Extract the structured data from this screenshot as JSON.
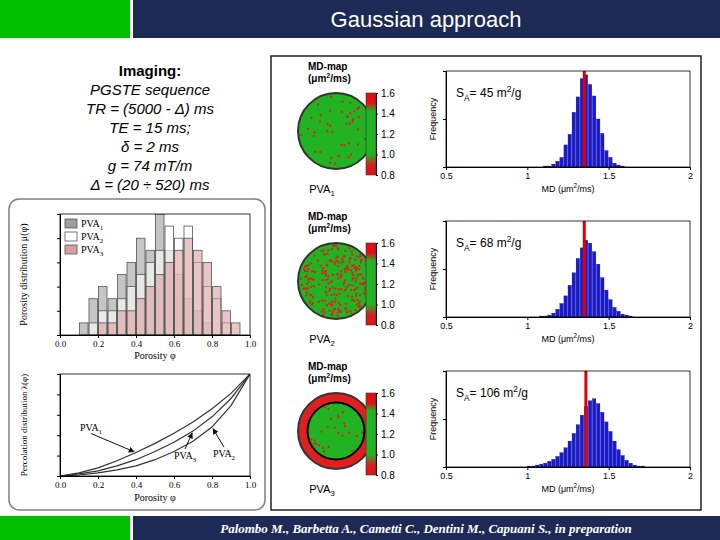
{
  "slide": {
    "title": "Gaussian approach",
    "imaging": {
      "heading": "Imaging:",
      "lines": [
        "PGSTE sequence",
        "TR = (5000 - Δ) ms",
        "TE = 15 ms;",
        "δ = 2 ms",
        "g = 74 mT/m",
        "Δ = (20 ÷ 520) ms"
      ]
    },
    "footer": "Palombo M., Barbetta A., Cametti C., Dentini M., Capuani S., in preparation"
  },
  "chart_data": [
    {
      "type": "histogram",
      "x_label": "Porosity φ",
      "y_label": "Porosity distribution μ(φ)",
      "bins": [
        0.1,
        0.15,
        0.2,
        0.25,
        0.3,
        0.35,
        0.4,
        0.45,
        0.5,
        0.55,
        0.6,
        0.65,
        0.7,
        0.75,
        0.8,
        0.85,
        0.9,
        0.95
      ],
      "series": [
        {
          "name": "PVA1",
          "color": "#9e9e9e",
          "values": [
            1,
            3,
            4,
            3,
            5,
            6,
            8,
            7,
            10,
            7,
            5,
            3,
            2,
            1,
            0,
            0,
            0
          ]
        },
        {
          "name": "PVA2",
          "color": "#ffffff",
          "values": [
            0,
            1,
            2,
            2,
            3,
            4,
            5,
            6,
            7,
            9,
            8,
            9,
            6,
            4,
            3,
            1,
            0
          ]
        },
        {
          "name": "PVA3",
          "color": "#d9a0a0",
          "values": [
            0,
            0,
            1,
            1,
            2,
            2,
            3,
            4,
            5,
            6,
            7,
            8,
            7,
            6,
            4,
            2,
            1
          ]
        }
      ],
      "xlim": [
        0,
        1
      ],
      "xticks": [
        {
          "value": 0,
          "label": "0.0"
        },
        0.2,
        0.4,
        0.6,
        0.8,
        {
          "value": 1,
          "label": "1.0"
        }
      ],
      "ylim": [
        0,
        10
      ],
      "yticks": [
        0,
        2,
        4,
        6,
        8,
        10
      ],
      "tick_labels": "x",
      "legend": "upper left"
    },
    {
      "type": "line",
      "x_label": "Porosity φ",
      "y_label": "Percolation distribution λ(φ)",
      "x": [
        0,
        0.1,
        0.2,
        0.3,
        0.4,
        0.5,
        0.6,
        0.7,
        0.8,
        0.9,
        1
      ],
      "series": [
        {
          "name": "PVA1",
          "color": "#333333",
          "values": [
            0,
            0.03,
            0.08,
            0.15,
            0.23,
            0.32,
            0.42,
            0.53,
            0.66,
            0.81,
            1
          ]
        },
        {
          "name": "PVA2",
          "color": "#333333",
          "values": [
            0,
            0.01,
            0.03,
            0.06,
            0.1,
            0.16,
            0.24,
            0.34,
            0.48,
            0.69,
            1
          ]
        },
        {
          "name": "PVA3",
          "color": "#333333",
          "values": [
            0,
            0.02,
            0.05,
            0.1,
            0.16,
            0.24,
            0.33,
            0.44,
            0.58,
            0.76,
            1
          ]
        }
      ],
      "xlim": [
        0,
        1
      ],
      "xticks": [
        {
          "value": 0,
          "label": "0.0"
        },
        0.2,
        0.4,
        0.6,
        0.8,
        {
          "value": 1,
          "label": "1.0"
        }
      ],
      "ylim": [
        0,
        1
      ],
      "yticks": [
        0,
        0.2,
        0.4,
        0.6,
        0.8,
        1
      ],
      "tick_labels": "x"
    },
    {
      "type": "image",
      "title": [
        "MD-map",
        "(μm2/ms)"
      ],
      "label": "PVA1",
      "color_bar": {
        "range": [
          0.8,
          1.6
        ],
        "ticks": [
          0.8,
          {
            "value": 1,
            "label": "1.0"
          },
          1.2,
          1.4,
          1.6
        ]
      }
    },
    {
      "type": "histogram",
      "x_label": "MD (μm2/ms)",
      "y_label": "Frequency",
      "color": "#1a1ad6",
      "bins": [
        1.0,
        1.025,
        1.05,
        1.075,
        1.1,
        1.125,
        1.15,
        1.175,
        1.2,
        1.225,
        1.25,
        1.275,
        1.3,
        1.325,
        1.35,
        1.375,
        1.4,
        1.425,
        1.45,
        1.475,
        1.5,
        1.525,
        1.55,
        1.575,
        1.6,
        1.625,
        1.65,
        1.675,
        1.7,
        1.725,
        1.75
      ],
      "values": [
        0,
        0,
        0,
        0,
        1,
        1,
        3,
        6,
        10,
        23,
        34,
        57,
        73,
        92,
        96,
        86,
        74,
        50,
        35,
        17,
        10,
        4,
        2,
        1,
        0,
        0,
        0,
        0,
        0,
        0
      ],
      "vline": 1.35,
      "annotation": "SA= 45 m2/g",
      "xlim": [
        0.5,
        2
      ],
      "xticks": [
        0.5,
        1,
        1.5,
        2
      ],
      "ylim": [
        0,
        100
      ],
      "yticks": [
        0,
        50,
        100
      ],
      "tick_labels": "x"
    },
    {
      "type": "image",
      "title": [
        "MD-map",
        "(μm2/ms)"
      ],
      "label": "PVA2",
      "color_bar": {
        "range": [
          0.8,
          1.6
        ],
        "ticks": [
          0.8,
          {
            "value": 1,
            "label": "1.0"
          },
          1.2,
          1.4,
          1.6
        ]
      }
    },
    {
      "type": "histogram",
      "x_label": "MD (μm2/ms)",
      "y_label": "Frequency",
      "color": "#1a1ad6",
      "bins": [
        1.0,
        1.025,
        1.05,
        1.075,
        1.1,
        1.125,
        1.15,
        1.175,
        1.2,
        1.225,
        1.25,
        1.275,
        1.3,
        1.325,
        1.35,
        1.375,
        1.4,
        1.425,
        1.45,
        1.475,
        1.5,
        1.525,
        1.55,
        1.575,
        1.6,
        1.625,
        1.65,
        1.675,
        1.7,
        1.725,
        1.75
      ],
      "values": [
        0,
        0,
        0,
        1,
        1,
        2,
        4,
        8,
        14,
        22,
        33,
        46,
        61,
        72,
        80,
        77,
        68,
        55,
        41,
        28,
        18,
        10,
        6,
        3,
        2,
        1,
        0,
        0,
        0,
        0
      ],
      "vline": 1.35,
      "annotation": "SA= 68 m2/g",
      "xlim": [
        0.5,
        2
      ],
      "xticks": [
        0.5,
        1,
        1.5,
        2
      ],
      "ylim": [
        0,
        100
      ],
      "yticks": [
        0,
        50,
        100
      ],
      "tick_labels": "x"
    },
    {
      "type": "image",
      "title": [
        "MD-map",
        "(μm2/ms)"
      ],
      "label": "PVA3",
      "color_bar": {
        "range": [
          0.8,
          1.6
        ],
        "ticks": [
          0.8,
          {
            "value": 1,
            "label": "1.0"
          },
          1.2,
          1.4,
          1.6
        ]
      }
    },
    {
      "type": "histogram",
      "x_label": "MD (μm2/ms)",
      "y_label": "Frequency",
      "color": "#1a1ad6",
      "bins": [
        1.0,
        1.025,
        1.05,
        1.075,
        1.1,
        1.125,
        1.15,
        1.175,
        1.2,
        1.225,
        1.25,
        1.275,
        1.3,
        1.325,
        1.35,
        1.375,
        1.4,
        1.425,
        1.45,
        1.475,
        1.5,
        1.525,
        1.55,
        1.575,
        1.6,
        1.625,
        1.65,
        1.675,
        1.7,
        1.725,
        1.75
      ],
      "values": [
        1,
        1,
        2,
        3,
        4,
        6,
        8,
        11,
        15,
        20,
        27,
        35,
        44,
        54,
        63,
        69,
        71,
        66,
        57,
        47,
        37,
        27,
        18,
        12,
        7,
        4,
        2,
        1,
        1,
        0
      ],
      "vline": 1.36,
      "annotation": "SA= 106 m2/g",
      "xlim": [
        0.5,
        2
      ],
      "xticks": [
        0.5,
        1,
        1.5,
        2
      ],
      "ylim": [
        0,
        100
      ],
      "yticks": [
        0,
        50,
        100
      ],
      "tick_labels": "x"
    }
  ]
}
